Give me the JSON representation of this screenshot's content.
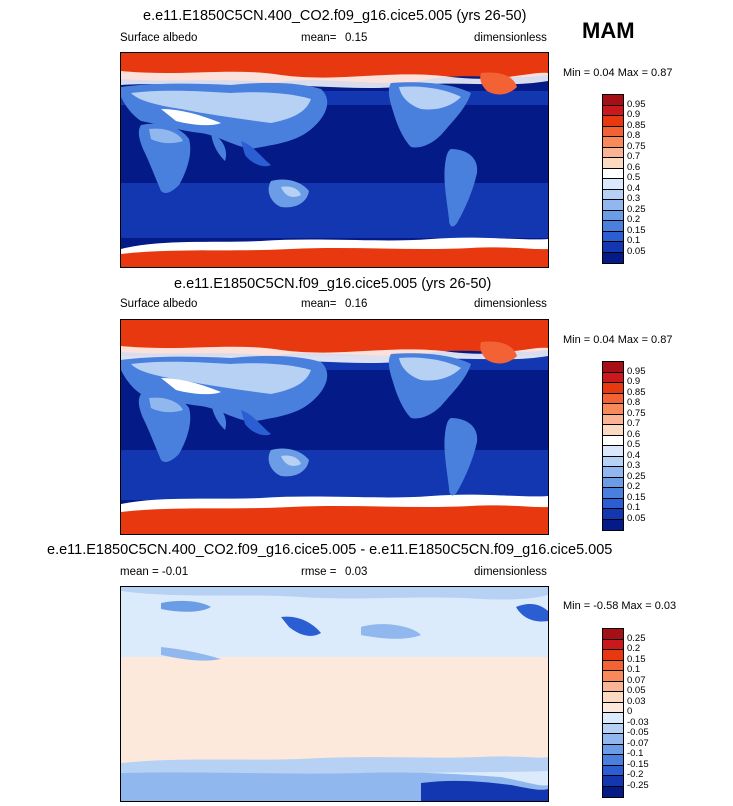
{
  "season": "MAM",
  "panels": [
    {
      "title": "e.e11.E1850C5CN.400_CO2.f09_g16.cice5.005 (yrs 26-50)",
      "left_label": "Surface albedo",
      "mid_label": "mean=",
      "mid_value": "0.15",
      "right_label": "dimensionless",
      "minmax": "Min =   0.04 Max =   0.87",
      "colorbar": {
        "labels": [
          "0.95",
          "0.9",
          "0.85",
          "0.8",
          "0.75",
          "0.7",
          "0.6",
          "0.5",
          "0.4",
          "0.3",
          "0.25",
          "0.2",
          "0.15",
          "0.1",
          "0.05"
        ],
        "colors": [
          "#a50f15",
          "#cb181d",
          "#e8380f",
          "#f26234",
          "#f88a5a",
          "#fbb493",
          "#fcd9c1",
          "#ffffff",
          "#dbe8fb",
          "#b7d1f5",
          "#91b8ee",
          "#6b9de6",
          "#4a80dd",
          "#2a5ed2",
          "#1237b0",
          "#041a86"
        ]
      }
    },
    {
      "title": "e.e11.E1850C5CN.f09_g16.cice5.005 (yrs 26-50)",
      "left_label": "Surface albedo",
      "mid_label": "mean=",
      "mid_value": "0.16",
      "right_label": "dimensionless",
      "minmax": "Min =   0.04 Max =   0.87",
      "colorbar": {
        "labels": [
          "0.95",
          "0.9",
          "0.85",
          "0.8",
          "0.75",
          "0.7",
          "0.6",
          "0.5",
          "0.4",
          "0.3",
          "0.25",
          "0.2",
          "0.15",
          "0.1",
          "0.05"
        ],
        "colors": [
          "#a50f15",
          "#cb181d",
          "#e8380f",
          "#f26234",
          "#f88a5a",
          "#fbb493",
          "#fcd9c1",
          "#ffffff",
          "#dbe8fb",
          "#b7d1f5",
          "#91b8ee",
          "#6b9de6",
          "#4a80dd",
          "#2a5ed2",
          "#1237b0",
          "#041a86"
        ]
      }
    },
    {
      "title": "e.e11.E1850C5CN.400_CO2.f09_g16.cice5.005 - e.e11.E1850C5CN.f09_g16.cice5.005",
      "left_label": "mean =  -0.01",
      "mid_label": "rmse =",
      "mid_value": "0.03",
      "right_label": "dimensionless",
      "minmax": "Min =  -0.58 Max =   0.03",
      "colorbar": {
        "labels": [
          "0.25",
          "0.2",
          "0.15",
          "0.1",
          "0.07",
          "0.05",
          "0.03",
          "0",
          "-0.03",
          "-0.05",
          "-0.07",
          "-0.1",
          "-0.15",
          "-0.2",
          "-0.25"
        ],
        "colors": [
          "#a50f15",
          "#cb181d",
          "#e8380f",
          "#f26234",
          "#f88a5a",
          "#fbb493",
          "#fcd9c1",
          "#fde9dc",
          "#dcebfb",
          "#b7d1f5",
          "#91b8ee",
          "#6b9de6",
          "#4a80dd",
          "#2a5ed2",
          "#1237b0",
          "#041a86"
        ]
      }
    }
  ]
}
